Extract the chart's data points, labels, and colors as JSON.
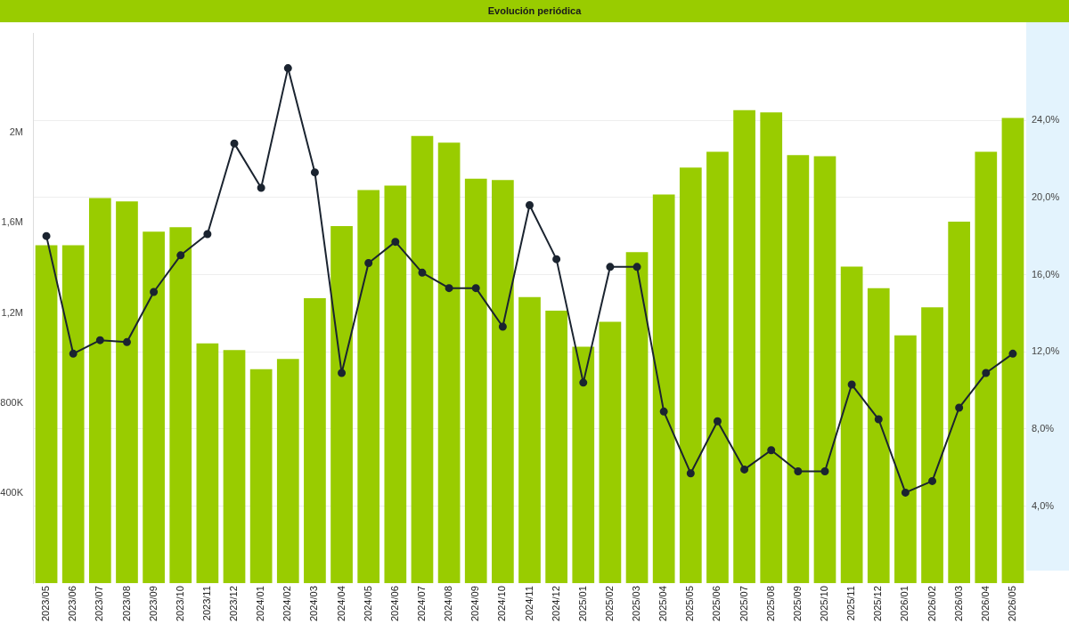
{
  "chart_data": {
    "type": "bar",
    "title": "Evolución periódica",
    "categories": [
      "2023/05",
      "2023/06",
      "2023/07",
      "2023/08",
      "2023/09",
      "2023/10",
      "2023/11",
      "2023/12",
      "2024/01",
      "2024/02",
      "2024/03",
      "2024/04",
      "2024/05",
      "2024/06",
      "2024/07",
      "2024/08",
      "2024/09",
      "2024/10",
      "2024/11",
      "2024/12",
      "2025/01",
      "2025/02",
      "2025/03",
      "2025/04",
      "2025/05",
      "2025/06",
      "2025/07",
      "2025/08",
      "2025/09",
      "2025/10",
      "2025/11",
      "2025/12",
      "2026/01",
      "2026/02",
      "2026/03",
      "2026/04",
      "2026/05"
    ],
    "series": [
      {
        "color": "#99cc00",
        "values": [
          1500000,
          1500000,
          1710000,
          1695000,
          1560000,
          1580000,
          1065000,
          1035000,
          950000,
          995000,
          1265000,
          1585000,
          1745000,
          1765000,
          1985000,
          1955000,
          1795000,
          1790000,
          1270000,
          1210000,
          1050000,
          1160000,
          1470000,
          1725000,
          1845000,
          1915000,
          2100000,
          2090000,
          1900000,
          1895000,
          1405000,
          1310000,
          1100000,
          1225000,
          1605000,
          1915000,
          2065000
        ]
      },
      {
        "type": "line",
        "axis": "y2",
        "color": "#1b2430",
        "values": [
          18.0,
          11.9,
          12.6,
          12.5,
          15.1,
          17.0,
          18.1,
          22.8,
          20.5,
          26.7,
          21.3,
          10.9,
          16.6,
          17.7,
          16.1,
          15.3,
          15.3,
          13.3,
          19.6,
          16.8,
          10.4,
          16.4,
          16.4,
          8.9,
          5.7,
          8.4,
          5.9,
          6.9,
          5.8,
          5.8,
          10.3,
          8.5,
          4.7,
          5.3,
          9.1,
          10.9,
          11.9
        ]
      }
    ],
    "ylim": [
      0,
      2440000
    ],
    "yticks": [
      {
        "value": 400000,
        "label": "400K"
      },
      {
        "value": 800000,
        "label": "800K"
      },
      {
        "value": 1200000,
        "label": "1,2M"
      },
      {
        "value": 1600000,
        "label": "1,6M"
      },
      {
        "value": 2000000,
        "label": "2M"
      }
    ],
    "y2lim": [
      0,
      28.5
    ],
    "y2ticks": [
      {
        "value": 4,
        "label": "4,0%"
      },
      {
        "value": 8,
        "label": "8,0%"
      },
      {
        "value": 12,
        "label": "12,0%"
      },
      {
        "value": 16,
        "label": "16,0%"
      },
      {
        "value": 20,
        "label": "20,0%"
      },
      {
        "value": 24,
        "label": "24,0%"
      }
    ],
    "grid": "y",
    "legend": false,
    "marker": "circle",
    "line_style": "solid"
  }
}
